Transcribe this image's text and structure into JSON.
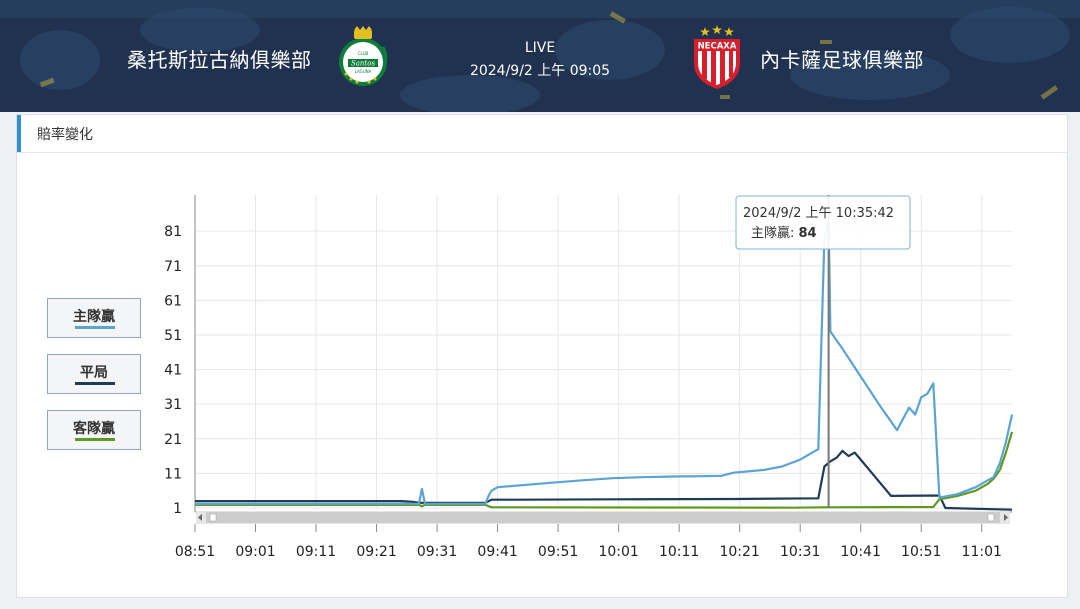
{
  "match": {
    "home_team": "桑托斯拉古納俱樂部",
    "away_team": "內卡薩足球俱樂部",
    "status": "LIVE",
    "datetime": "2024/9/2 上午 09:05",
    "home_logo_text": "Santos",
    "home_logo_top": "CLUB",
    "home_logo_bottom": "LAGUNA",
    "away_logo_text": "NECAXA"
  },
  "panel": {
    "title": "賠率變化"
  },
  "legend": [
    {
      "label": "主隊贏",
      "color": "#5ba3d4"
    },
    {
      "label": "平局",
      "color": "#1f3b57"
    },
    {
      "label": "客隊贏",
      "color": "#5e9a22"
    }
  ],
  "tooltip": {
    "time": "2024/9/2 上午 10:35:42",
    "series_label": "主隊贏: ",
    "value": "84"
  },
  "chart_data": {
    "type": "line",
    "title": "",
    "xlabel": "",
    "ylabel": "",
    "x_ticks": [
      "08:51",
      "09:01",
      "09:11",
      "09:21",
      "09:31",
      "09:41",
      "09:51",
      "10:01",
      "10:11",
      "10:21",
      "10:31",
      "10:41",
      "10:51",
      "11:01"
    ],
    "y_ticks": [
      1,
      11,
      21,
      31,
      41,
      51,
      61,
      71,
      81
    ],
    "x_range": [
      "08:51",
      "11:06"
    ],
    "ylim": [
      1,
      90
    ],
    "grid": true,
    "legend_position": "left",
    "crosshair_time": "10:35:42",
    "series": [
      {
        "name": "主隊贏",
        "color": "#5ba3d4",
        "points": [
          [
            "08:51",
            2.2
          ],
          [
            "09:28",
            2.2
          ],
          [
            "09:28:30",
            6.5
          ],
          [
            "09:29",
            2.2
          ],
          [
            "09:39",
            2.2
          ],
          [
            "09:39:30",
            4.5
          ],
          [
            "09:40",
            6.0
          ],
          [
            "09:41",
            7.0
          ],
          [
            "09:45",
            7.6
          ],
          [
            "09:50",
            8.3
          ],
          [
            "09:55",
            9.0
          ],
          [
            "10:00",
            9.6
          ],
          [
            "10:05",
            9.9
          ],
          [
            "10:10",
            10.1
          ],
          [
            "10:15",
            10.2
          ],
          [
            "10:18",
            10.3
          ],
          [
            "10:20",
            11.2
          ],
          [
            "10:25",
            12.0
          ],
          [
            "10:28",
            13.0
          ],
          [
            "10:31",
            15.0
          ],
          [
            "10:33",
            17.0
          ],
          [
            "10:34",
            18.0
          ],
          [
            "10:35",
            79.0
          ],
          [
            "10:35:42",
            84
          ],
          [
            "10:36",
            52.0
          ],
          [
            "10:38",
            47.0
          ],
          [
            "10:41",
            39.0
          ],
          [
            "10:44",
            31.0
          ],
          [
            "10:47",
            23.5
          ],
          [
            "10:49",
            30.0
          ],
          [
            "10:50",
            28.0
          ],
          [
            "10:51",
            33.0
          ],
          [
            "10:52",
            34.0
          ],
          [
            "10:53",
            37.0
          ],
          [
            "10:54",
            4.0
          ],
          [
            "10:57",
            5.0
          ],
          [
            "11:00",
            7.0
          ],
          [
            "11:02",
            9.0
          ],
          [
            "11:03",
            10.0
          ],
          [
            "11:04",
            14.0
          ],
          [
            "11:05",
            20.0
          ],
          [
            "11:06",
            28.0
          ]
        ]
      },
      {
        "name": "平局",
        "color": "#1f3b57",
        "points": [
          [
            "08:51",
            3.0
          ],
          [
            "09:25",
            3.0
          ],
          [
            "09:27",
            2.8
          ],
          [
            "09:28",
            2.5
          ],
          [
            "09:39",
            2.5
          ],
          [
            "09:40",
            3.4
          ],
          [
            "09:45",
            3.4
          ],
          [
            "10:00",
            3.5
          ],
          [
            "10:20",
            3.6
          ],
          [
            "10:34",
            3.8
          ],
          [
            "10:35",
            13.0
          ],
          [
            "10:36",
            14.5
          ],
          [
            "10:37",
            15.5
          ],
          [
            "10:38",
            17.5
          ],
          [
            "10:39",
            16.0
          ],
          [
            "10:40",
            17.0
          ],
          [
            "10:41",
            15.0
          ],
          [
            "10:46",
            4.5
          ],
          [
            "10:54",
            4.6
          ],
          [
            "10:55",
            1.0
          ],
          [
            "11:06",
            0.5
          ]
        ]
      },
      {
        "name": "客隊贏",
        "color": "#5e9a22",
        "points": [
          [
            "08:51",
            1.9
          ],
          [
            "09:28",
            1.9
          ],
          [
            "09:28:30",
            1.5
          ],
          [
            "09:29",
            1.9
          ],
          [
            "09:39",
            1.9
          ],
          [
            "09:40",
            1.2
          ],
          [
            "10:30",
            1.1
          ],
          [
            "10:35",
            1.2
          ],
          [
            "10:53",
            1.3
          ],
          [
            "10:54",
            3.5
          ],
          [
            "10:57",
            4.5
          ],
          [
            "11:00",
            6.0
          ],
          [
            "11:02",
            8.0
          ],
          [
            "11:03",
            9.5
          ],
          [
            "11:04",
            12.0
          ],
          [
            "11:05",
            17.0
          ],
          [
            "11:06",
            23.0
          ]
        ]
      }
    ]
  }
}
